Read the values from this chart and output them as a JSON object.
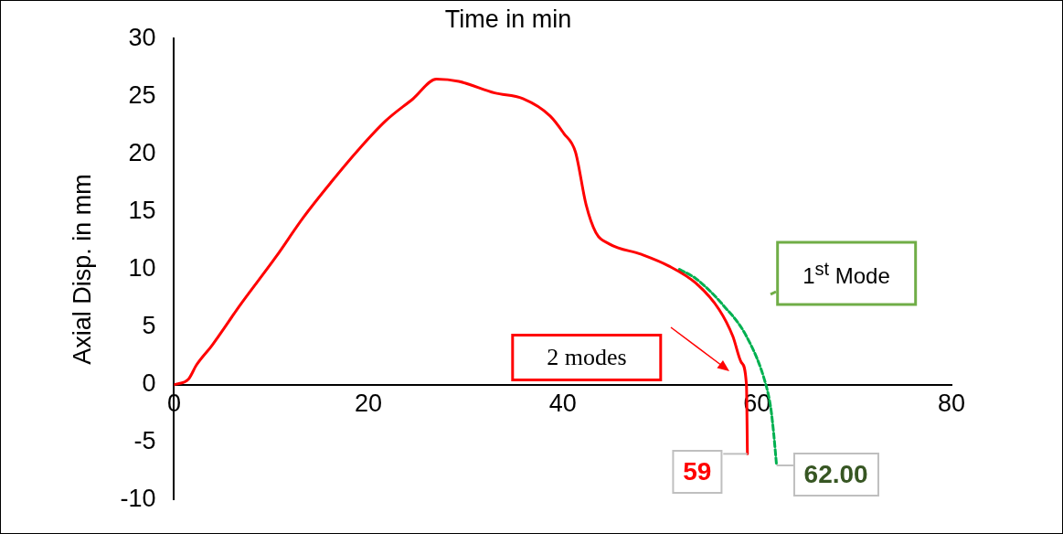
{
  "chart_data": {
    "type": "line",
    "xlabel": "Time in min",
    "ylabel": "Axial Disp. in mm",
    "xlim": [
      0,
      80
    ],
    "xticks": [
      0,
      20,
      40,
      60,
      80
    ],
    "ylim": [
      -10,
      30
    ],
    "yticks": [
      -10,
      -5,
      0,
      5,
      10,
      15,
      20,
      25,
      30
    ],
    "grid": false,
    "legend": false,
    "series": [
      {
        "color": "#ff0000",
        "line_style": "solid",
        "x": [
          0,
          1.5,
          2.3,
          3.9,
          6.8,
          10.5,
          13.3,
          16.2,
          19,
          21.8,
          24.6,
          27,
          29.3,
          33,
          35.9,
          38.7,
          40.1,
          41.3,
          42.4,
          43.4,
          44.8,
          48.1,
          50.9,
          53.7,
          56.1,
          57.5,
          58.4,
          58.9,
          59
        ],
        "values": [
          0,
          0.5,
          1.7,
          3.4,
          6.9,
          11.1,
          14.5,
          17.6,
          20.4,
          22.9,
          24.8,
          26.5,
          26.3,
          25.3,
          24.8,
          23.3,
          21.8,
          20.2,
          15.6,
          13.2,
          12.2,
          11.3,
          10.3,
          8.8,
          6.5,
          4.2,
          1.9,
          0,
          -6
        ]
      },
      {
        "color": "#00b050",
        "line_style": "dashed",
        "x": [
          52,
          53.7,
          56.5,
          58.9,
          60.9,
          61.4,
          61.7,
          62
        ],
        "values": [
          10,
          9.2,
          6.9,
          4.2,
          0,
          -2,
          -4.2,
          -7
        ]
      }
    ],
    "annotations": [
      "2 modes",
      "1$^{st}$ Mode",
      {
        "text": "59",
        "x": 59,
        "y": -6
      },
      {
        "text": "62.00",
        "x": 62,
        "y": -7
      }
    ]
  }
}
